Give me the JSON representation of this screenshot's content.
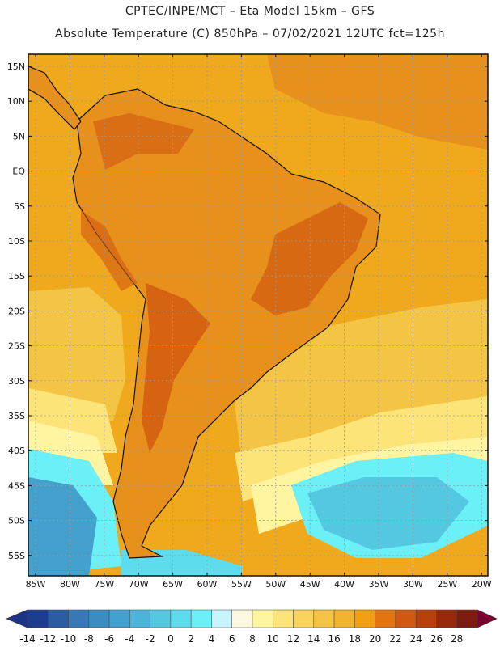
{
  "header": {
    "line1": "CPTEC/INPE/MCT –  Eta Model 15km – GFS",
    "line2": "Absolute Temperature (C) 850hPa – 07/02/2021 12UTC fct=125h"
  },
  "map": {
    "lat_labels": [
      "15N",
      "10N",
      "5N",
      "EQ",
      "5S",
      "10S",
      "15S",
      "20S",
      "25S",
      "30S",
      "35S",
      "40S",
      "45S",
      "50S",
      "55S"
    ],
    "lon_labels": [
      "85W",
      "80W",
      "75W",
      "70W",
      "65W",
      "60W",
      "55W",
      "50W",
      "45W",
      "40W",
      "35W",
      "30W",
      "25W",
      "20W"
    ],
    "background_color": "#f0a81c"
  },
  "colorbar": {
    "ticks": [
      "-14",
      "-12",
      "-10",
      "-8",
      "-6",
      "-4",
      "-2",
      "0",
      "2",
      "4",
      "6",
      "8",
      "10",
      "12",
      "14",
      "16",
      "18",
      "20",
      "22",
      "24",
      "26",
      "28"
    ],
    "colors": [
      "#1c3c8c",
      "#2c5ca0",
      "#3878b4",
      "#3c8cc0",
      "#44a0cc",
      "#4cb4d8",
      "#54c8e0",
      "#5cdcec",
      "#6cf0f8",
      "#c8f4fc",
      "#fff8e0",
      "#fff4a0",
      "#fce478",
      "#f8d45c",
      "#f4c444",
      "#f0b430",
      "#f0a010",
      "#e47410",
      "#d05810",
      "#b8400c",
      "#98280c",
      "#7c1c10"
    ],
    "left_arrow_color": "#1c3488",
    "right_arrow_color": "#7c0030"
  }
}
